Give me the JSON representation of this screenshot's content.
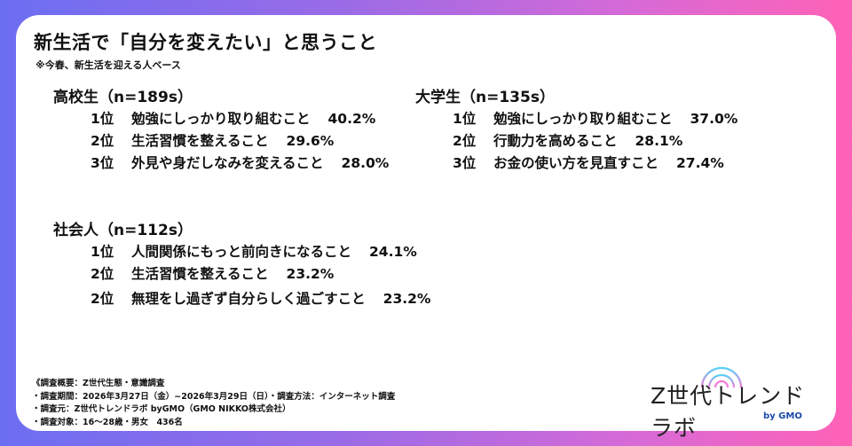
{
  "title": "新生活で「自分を変えたい」と思うこと",
  "subtitle": "※今春、新生活を迎える人ベース",
  "groups": [
    {
      "heading": "高校生（n=189s）",
      "items": [
        {
          "rank": "1位",
          "label": "勉強にしっかり取り組むこと",
          "value": "40.2%"
        },
        {
          "rank": "2位",
          "label": "生活習慣を整えること",
          "value": "29.6%"
        },
        {
          "rank": "3位",
          "label": "外見や身だしなみを変えること",
          "value": "28.0%"
        }
      ]
    },
    {
      "heading": "大学生（n=135s）",
      "items": [
        {
          "rank": "1位",
          "label": "勉強にしっかり取り組むこと",
          "value": "37.0%"
        },
        {
          "rank": "2位",
          "label": "行動力を高めること",
          "value": "28.1%"
        },
        {
          "rank": "3位",
          "label": "お金の使い方を見直すこと",
          "value": "27.4%"
        }
      ]
    },
    {
      "heading": "社会人（n=112s）",
      "items": [
        {
          "rank": "1位",
          "label": "人間関係にもっと前向きになること",
          "value": "24.1%"
        },
        {
          "rank": "2位",
          "label": "生活習慣を整えること",
          "value": "23.2%"
        },
        {
          "rank": "2位",
          "label": "無理をし過ぎず自分らしく過ごすこと",
          "value": "23.2%"
        }
      ]
    }
  ],
  "footer": [
    "《調査概要：Z世代生態・意識調査",
    "・調査期間：2026年3月27日（金）~2026年3月29日（日）・調査方法：インターネット調査",
    "・調査元：Z世代トレンドラボ byGMO（GMO NIKKO株式会社）",
    "・調査対象：16～28歳・男女　436名"
  ],
  "logo": {
    "name": "Z世代トレンドラボ",
    "by": "by GMO"
  },
  "colors": {
    "gradient_left": "#6c6ef2",
    "gradient_right": "#ff62b6"
  }
}
